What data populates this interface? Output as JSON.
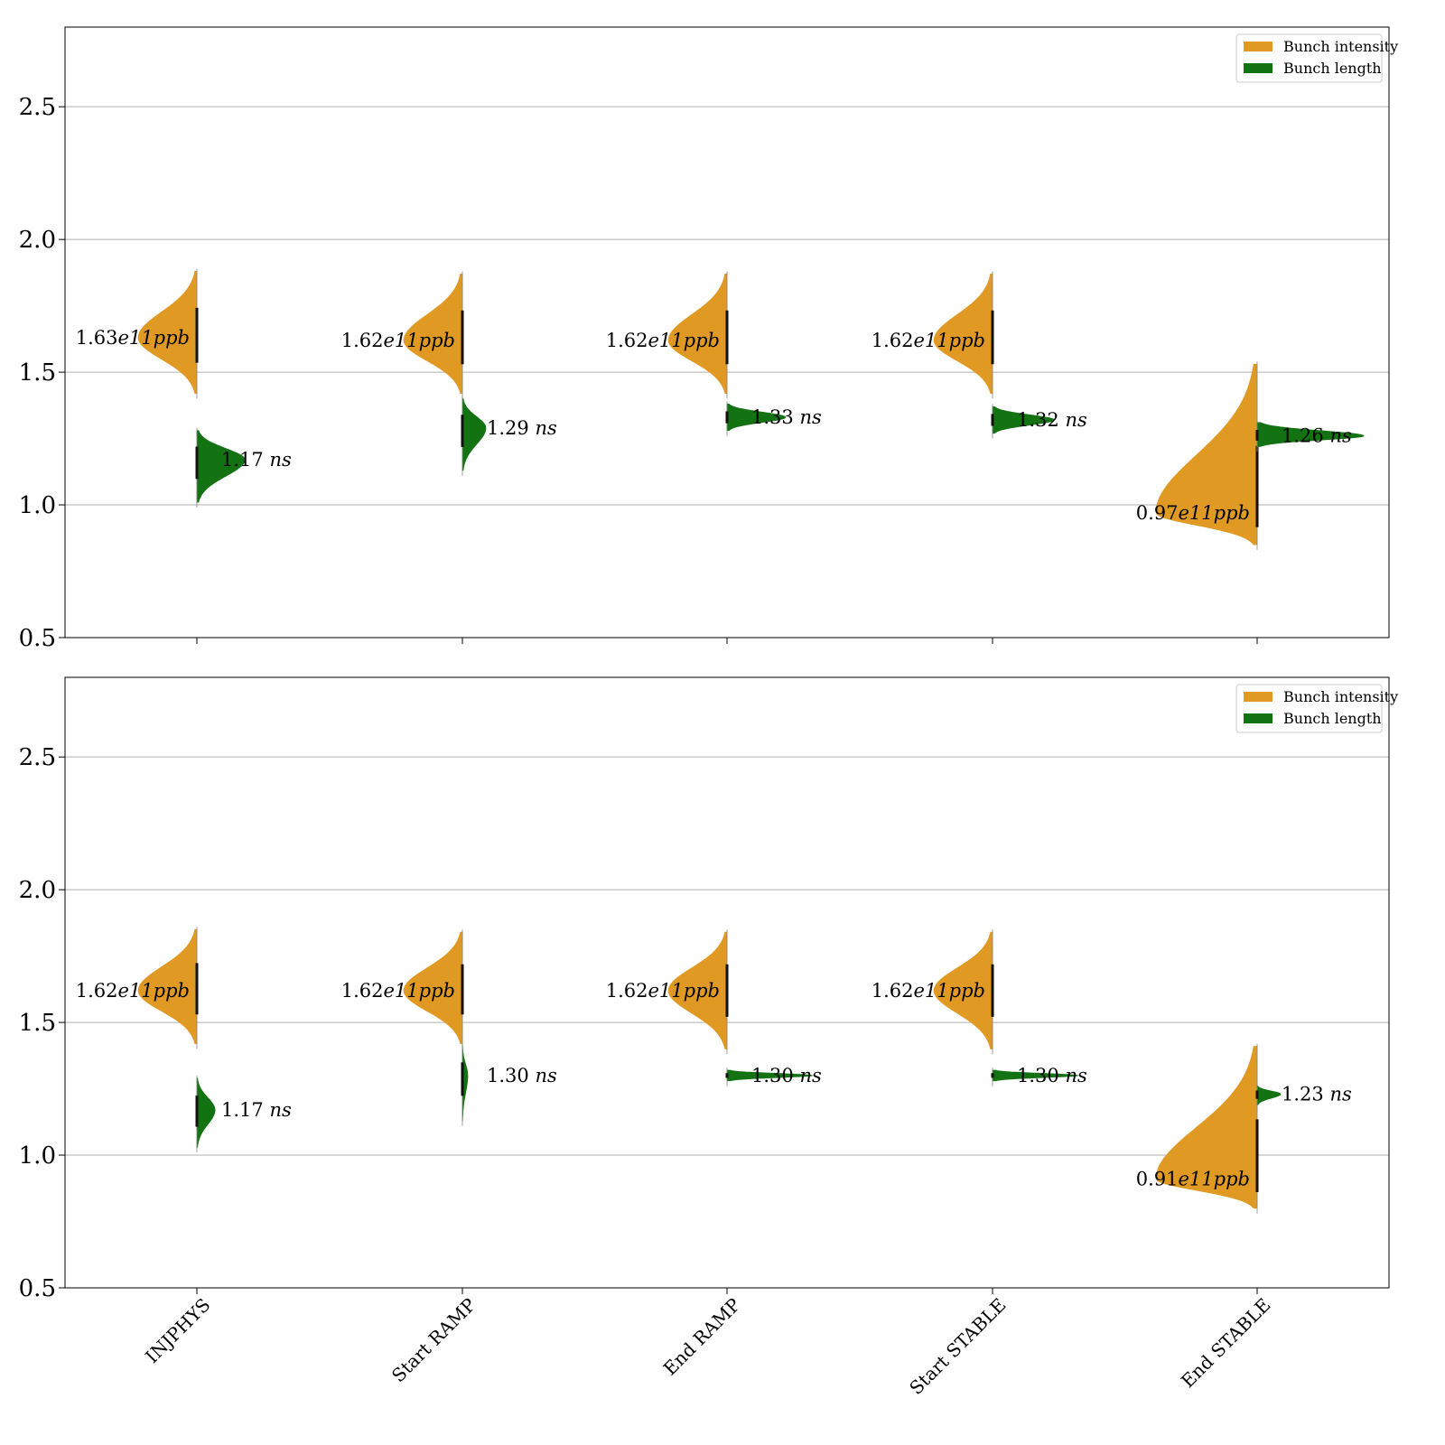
{
  "chart_data": [
    {
      "type": "violin",
      "panel": "top",
      "ylim": [
        0.5,
        2.8
      ],
      "yticks": [
        "0.5",
        "1.0",
        "1.5",
        "2.0",
        "2.5"
      ],
      "grid": "horizontal",
      "legend_placement": "top-right",
      "categories": [
        "INJPHYS",
        "Start RAMP",
        "End RAMP",
        "Start STABLE",
        "End STABLE"
      ],
      "series": [
        {
          "name": "Bunch intensity",
          "side": "left",
          "color": "#e09a23",
          "peak": [
            1.63,
            1.62,
            1.62,
            1.62,
            0.97
          ],
          "range": [
            [
              1.42,
              1.88
            ],
            [
              1.42,
              1.87
            ],
            [
              1.42,
              1.87
            ],
            [
              1.42,
              1.87
            ],
            [
              0.85,
              1.53
            ]
          ],
          "width": [
            0.55,
            0.55,
            0.55,
            0.55,
            0.95
          ],
          "labels": [
            {
              "num": "1.63",
              "exp": "e11",
              "unit": "ppb"
            },
            {
              "num": "1.62",
              "exp": "e11",
              "unit": "ppb"
            },
            {
              "num": "1.62",
              "exp": "e11",
              "unit": "ppb"
            },
            {
              "num": "1.62",
              "exp": "e11",
              "unit": "ppb"
            },
            {
              "num": "0.97",
              "exp": "e11",
              "unit": "ppb"
            }
          ]
        },
        {
          "name": "Bunch length",
          "side": "right",
          "color": "#137313",
          "peak": [
            1.17,
            1.29,
            1.33,
            1.32,
            1.26
          ],
          "range": [
            [
              1.01,
              1.28
            ],
            [
              1.13,
              1.4
            ],
            [
              1.28,
              1.38
            ],
            [
              1.27,
              1.37
            ],
            [
              1.22,
              1.31
            ]
          ],
          "width": [
            0.45,
            0.22,
            0.55,
            0.58,
            1.0
          ],
          "labels": [
            {
              "num": "1.17",
              "unit": "ns"
            },
            {
              "num": "1.29",
              "unit": "ns"
            },
            {
              "num": "1.33",
              "unit": "ns"
            },
            {
              "num": "1.32",
              "unit": "ns"
            },
            {
              "num": "1.26",
              "unit": "ns"
            }
          ]
        }
      ]
    },
    {
      "type": "violin",
      "panel": "bottom",
      "ylim": [
        0.5,
        2.8
      ],
      "yticks": [
        "0.5",
        "1.0",
        "1.5",
        "2.0",
        "2.5"
      ],
      "grid": "horizontal",
      "legend_placement": "top-right",
      "categories": [
        "INJPHYS",
        "Start RAMP",
        "End RAMP",
        "Start STABLE",
        "End STABLE"
      ],
      "series": [
        {
          "name": "Bunch intensity",
          "side": "left",
          "color": "#e09a23",
          "peak": [
            1.62,
            1.62,
            1.62,
            1.62,
            0.91
          ],
          "range": [
            [
              1.42,
              1.85
            ],
            [
              1.42,
              1.84
            ],
            [
              1.4,
              1.84
            ],
            [
              1.4,
              1.84
            ],
            [
              0.8,
              1.41
            ]
          ],
          "width": [
            0.55,
            0.55,
            0.55,
            0.55,
            0.95
          ],
          "labels": [
            {
              "num": "1.62",
              "exp": "e11",
              "unit": "ppb"
            },
            {
              "num": "1.62",
              "exp": "e11",
              "unit": "ppb"
            },
            {
              "num": "1.62",
              "exp": "e11",
              "unit": "ppb"
            },
            {
              "num": "1.62",
              "exp": "e11",
              "unit": "ppb"
            },
            {
              "num": "0.91",
              "exp": "e11",
              "unit": "ppb"
            }
          ]
        },
        {
          "name": "Bunch length",
          "side": "right",
          "color": "#137313",
          "peak": [
            1.17,
            1.3,
            1.3,
            1.3,
            1.23
          ],
          "range": [
            [
              1.03,
              1.29
            ],
            [
              1.13,
              1.41
            ],
            [
              1.28,
              1.32
            ],
            [
              1.28,
              1.32
            ],
            [
              1.19,
              1.26
            ]
          ],
          "width": [
            0.17,
            0.05,
            0.8,
            0.8,
            0.22
          ],
          "labels": [
            {
              "num": "1.17",
              "unit": "ns"
            },
            {
              "num": "1.30",
              "unit": "ns"
            },
            {
              "num": "1.30",
              "unit": "ns"
            },
            {
              "num": "1.30",
              "unit": "ns"
            },
            {
              "num": "1.23",
              "unit": "ns"
            }
          ]
        }
      ]
    }
  ]
}
